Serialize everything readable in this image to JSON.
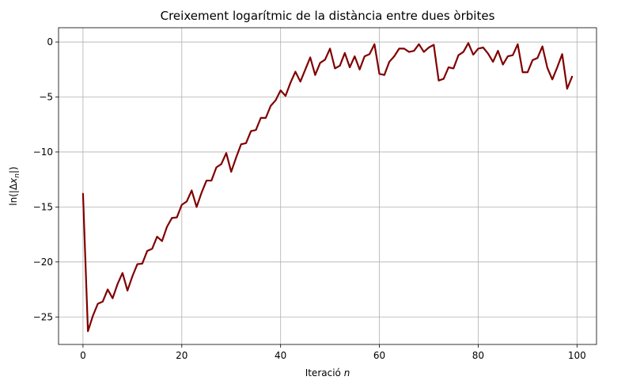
{
  "chart_data": {
    "type": "line",
    "title": "Creixement logarítmic de la distància entre dues òrbites",
    "xlabel_text": "Iteració ",
    "xlabel_var": "n",
    "ylabel": "ln(|Δx_n|)",
    "xlim": [
      -4.95,
      103.95
    ],
    "ylim": [
      -27.5,
      1.3
    ],
    "xticks": [
      0,
      20,
      40,
      60,
      80,
      100
    ],
    "yticks": [
      0,
      -5,
      -10,
      -15,
      -20,
      -25
    ],
    "ytick_labels": [
      "0",
      "−5",
      "−10",
      "−15",
      "−20",
      "−25"
    ],
    "grid": true,
    "color": "#800000",
    "x": [
      0,
      1,
      2,
      3,
      4,
      5,
      6,
      7,
      8,
      9,
      10,
      11,
      12,
      13,
      14,
      15,
      16,
      17,
      18,
      19,
      20,
      21,
      22,
      23,
      24,
      25,
      26,
      27,
      28,
      29,
      30,
      31,
      32,
      33,
      34,
      35,
      36,
      37,
      38,
      39,
      40,
      41,
      42,
      43,
      44,
      45,
      46,
      47,
      48,
      49,
      50,
      51,
      52,
      53,
      54,
      55,
      56,
      57,
      58,
      59,
      60,
      61,
      62,
      63,
      64,
      65,
      66,
      67,
      68,
      69,
      70,
      71,
      72,
      73,
      74,
      75,
      76,
      77,
      78,
      79,
      80,
      81,
      82,
      83,
      84,
      85,
      86,
      87,
      88,
      89,
      90,
      91,
      92,
      93,
      94,
      95,
      96,
      97,
      98,
      99
    ],
    "y": [
      -13.8,
      -26.3,
      -24.9,
      -23.8,
      -23.6,
      -22.5,
      -23.3,
      -22.0,
      -21.0,
      -22.6,
      -21.3,
      -20.2,
      -20.15,
      -19.0,
      -18.8,
      -17.7,
      -18.1,
      -16.8,
      -16.0,
      -15.95,
      -14.8,
      -14.5,
      -13.5,
      -15.0,
      -13.7,
      -12.6,
      -12.6,
      -11.4,
      -11.1,
      -10.1,
      -11.8,
      -10.5,
      -9.3,
      -9.2,
      -8.1,
      -8.0,
      -6.9,
      -6.9,
      -5.8,
      -5.3,
      -4.4,
      -4.9,
      -3.7,
      -2.7,
      -3.6,
      -2.5,
      -1.4,
      -3.0,
      -1.9,
      -1.6,
      -0.6,
      -2.4,
      -2.15,
      -1.0,
      -2.3,
      -1.3,
      -2.5,
      -1.3,
      -1.1,
      -0.2,
      -2.9,
      -3.0,
      -1.8,
      -1.3,
      -0.6,
      -0.6,
      -0.9,
      -0.8,
      -0.2,
      -0.9,
      -0.5,
      -0.25,
      -3.5,
      -3.35,
      -2.3,
      -2.4,
      -1.2,
      -0.9,
      -0.1,
      -1.15,
      -0.6,
      -0.5,
      -1.05,
      -1.8,
      -0.8,
      -2.05,
      -1.3,
      -1.2,
      -0.2,
      -2.75,
      -2.75,
      -1.65,
      -1.45,
      -0.4,
      -2.35,
      -3.4,
      -2.3,
      -1.1,
      -4.25,
      -3.15
    ]
  }
}
